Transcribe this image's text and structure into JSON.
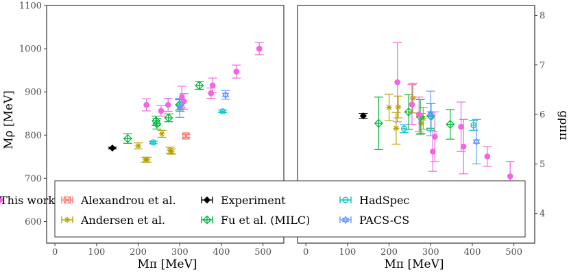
{
  "colors": {
    "Alexandrou et al.": "#F8766D",
    "Andersen et al.": "#B79F00",
    "Experiment": "#000000",
    "Fu et al. (MILC)": "#00BA38",
    "HadSpec": "#00BFC4",
    "PACS-CS": "#619CFF",
    "This work": "#F564E3"
  },
  "legend": {
    "position": "bottom-left (inside)",
    "items": [
      {
        "label": "Alexandrou et al.",
        "symbol": "square-cross"
      },
      {
        "label": "Andersen et al.",
        "symbol": "asterisk"
      },
      {
        "label": "Experiment",
        "symbol": "diamond-filled"
      },
      {
        "label": "Fu et al. (MILC)",
        "symbol": "diamond-plus"
      },
      {
        "label": "HadSpec",
        "symbol": "circle-minus"
      },
      {
        "label": "PACS-CS",
        "symbol": "star-of-david"
      },
      {
        "label": "This work",
        "symbol": "circle-filled"
      }
    ]
  },
  "chart_data": [
    {
      "type": "scatter",
      "panel": "left",
      "xlabel": "Mπ [MeV]",
      "ylabel": "Mρ [MeV]",
      "xlim": [
        -20,
        550
      ],
      "ylim": [
        550,
        1100
      ],
      "xticks": [
        0,
        100,
        200,
        300,
        400,
        500
      ],
      "yticks": [
        600,
        700,
        800,
        900,
        1000,
        1100
      ],
      "grid": false,
      "series": [
        {
          "name": "Alexandrou et al.",
          "points": [
            {
              "x": 315,
              "y": 798,
              "err": 4
            }
          ]
        },
        {
          "name": "Andersen et al.",
          "points": [
            {
              "x": 200,
              "y": 775,
              "err": 7
            },
            {
              "x": 217,
              "y": 743,
              "err": 6
            },
            {
              "x": 222,
              "y": 743,
              "err": 6
            },
            {
              "x": 257,
              "y": 803,
              "err": 8
            },
            {
              "x": 277,
              "y": 765,
              "err": 7
            },
            {
              "x": 280,
              "y": 762,
              "err": 6
            }
          ]
        },
        {
          "name": "Experiment",
          "points": [
            {
              "x": 138,
              "y": 770,
              "err": 2
            }
          ]
        },
        {
          "name": "Fu et al. (MILC)",
          "points": [
            {
              "x": 175,
              "y": 792,
              "err": 11
            },
            {
              "x": 243,
              "y": 833,
              "err": 11
            },
            {
              "x": 245,
              "y": 826,
              "err": 12
            },
            {
              "x": 273,
              "y": 840,
              "err": 9
            },
            {
              "x": 299,
              "y": 870,
              "err": 12
            },
            {
              "x": 347,
              "y": 915,
              "err": 9
            }
          ]
        },
        {
          "name": "HadSpec",
          "points": [
            {
              "x": 236,
              "y": 783,
              "err": 3
            },
            {
              "x": 301,
              "y": 870,
              "err": 15
            },
            {
              "x": 403,
              "y": 855,
              "err": 3
            }
          ]
        },
        {
          "name": "PACS-CS",
          "points": [
            {
              "x": 300,
              "y": 863,
              "err": 22
            },
            {
              "x": 410,
              "y": 893,
              "err": 10
            }
          ]
        },
        {
          "name": "This work",
          "points": [
            {
              "x": 220,
              "y": 870,
              "err": 14
            },
            {
              "x": 255,
              "y": 856,
              "err": 12
            },
            {
              "x": 272,
              "y": 870,
              "err": 15
            },
            {
              "x": 305,
              "y": 888,
              "err": 25
            },
            {
              "x": 310,
              "y": 878,
              "err": 18
            },
            {
              "x": 375,
              "y": 897,
              "err": 12
            },
            {
              "x": 379,
              "y": 915,
              "err": 17
            },
            {
              "x": 436,
              "y": 947,
              "err": 15
            },
            {
              "x": 491,
              "y": 1000,
              "err": 14
            }
          ]
        }
      ]
    },
    {
      "type": "scatter",
      "panel": "right",
      "xlabel": "Mπ [MeV]",
      "ylabel": "gρππ",
      "y_axis_side": "right",
      "xlim": [
        -20,
        550
      ],
      "ylim": [
        3.4,
        8.2
      ],
      "xticks": [
        0,
        100,
        200,
        300,
        400,
        500
      ],
      "yticks": [
        4,
        5,
        6,
        7,
        8
      ],
      "grid": false,
      "series": [
        {
          "name": "Andersen et al.",
          "points": [
            {
              "x": 200,
              "y": 6.14,
              "err": 0.27
            },
            {
              "x": 217,
              "y": 5.72,
              "err": 0.32
            },
            {
              "x": 222,
              "y": 6.15,
              "err": 0.22
            },
            {
              "x": 257,
              "y": 6.33,
              "err": 0.3
            },
            {
              "x": 277,
              "y": 5.82,
              "err": 0.2
            },
            {
              "x": 282,
              "y": 5.92,
              "err": 0.22
            }
          ]
        },
        {
          "name": "Experiment",
          "points": [
            {
              "x": 138,
              "y": 5.97,
              "err": 0.05
            }
          ]
        },
        {
          "name": "Fu et al. (MILC)",
          "points": [
            {
              "x": 175,
              "y": 5.82,
              "err": 0.53
            },
            {
              "x": 247,
              "y": 6.05,
              "err": 0.35
            },
            {
              "x": 275,
              "y": 5.95,
              "err": 0.35
            },
            {
              "x": 300,
              "y": 5.97,
              "err": 0.25
            },
            {
              "x": 347,
              "y": 5.8,
              "err": 0.3
            }
          ]
        },
        {
          "name": "HadSpec",
          "points": [
            {
              "x": 236,
              "y": 5.71,
              "err": 0.08
            },
            {
              "x": 301,
              "y": 5.95,
              "err": 0.27
            },
            {
              "x": 403,
              "y": 5.78,
              "err": 0.1
            }
          ]
        },
        {
          "name": "PACS-CS",
          "points": [
            {
              "x": 300,
              "y": 6.02,
              "err": 0.45
            },
            {
              "x": 410,
              "y": 5.45,
              "err": 0.45
            }
          ]
        },
        {
          "name": "This work",
          "points": [
            {
              "x": 220,
              "y": 6.65,
              "err": 0.8
            },
            {
              "x": 255,
              "y": 6.2,
              "err": 0.4
            },
            {
              "x": 272,
              "y": 6.0,
              "err": 0.35
            },
            {
              "x": 305,
              "y": 5.25,
              "err": 0.4
            },
            {
              "x": 310,
              "y": 5.55,
              "err": 0.5
            },
            {
              "x": 373,
              "y": 5.75,
              "err": 0.5
            },
            {
              "x": 379,
              "y": 5.35,
              "err": 0.55
            },
            {
              "x": 436,
              "y": 5.15,
              "err": 0.2
            },
            {
              "x": 491,
              "y": 4.75,
              "err": 0.3
            }
          ]
        }
      ]
    }
  ]
}
